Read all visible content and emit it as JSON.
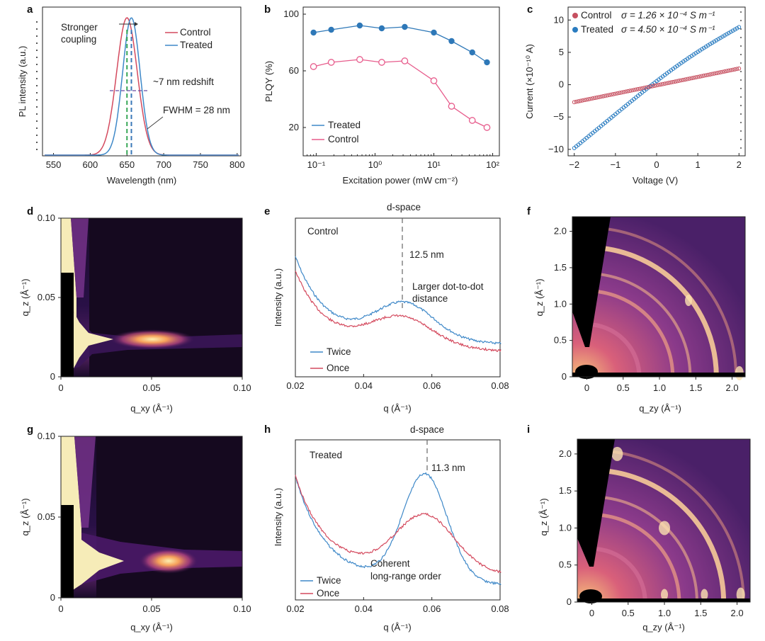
{
  "colors": {
    "control": "#d44a5e",
    "treated": "#3e88c8",
    "plqy_treated": "#2e78b8",
    "plqy_control": "#e75c8c",
    "iv_control": "#c65060",
    "iv_treated": "#2a7cc0"
  },
  "panels": {
    "a": {
      "label": "a",
      "annotations": {
        "coupling1": "Stronger",
        "coupling2": "coupling",
        "redshift": "~7 nm redshift",
        "fwhm": "FWHM = 28 nm"
      }
    },
    "b": {
      "label": "b"
    },
    "c": {
      "label": "c",
      "legend": {
        "control": "Control",
        "treated": "Treated",
        "sigma_control": "σ = 1.26 × 10⁻⁴ S m⁻¹",
        "sigma_treated": "σ = 4.50 × 10⁻⁴ S m⁻¹"
      }
    },
    "d": {
      "label": "d"
    },
    "e": {
      "label": "e",
      "top_label": "d-space",
      "annotations": {
        "sample": "Control",
        "spacing": "12.5 nm",
        "note1": "Larger dot-to-dot",
        "note2": "distance"
      }
    },
    "f": {
      "label": "f"
    },
    "g": {
      "label": "g"
    },
    "h": {
      "label": "h",
      "top_label": "d-space",
      "annotations": {
        "sample": "Treated",
        "spacing": "11.3 nm",
        "note1": "Coherent",
        "note2": "long-range order"
      }
    },
    "i": {
      "label": "i"
    }
  },
  "chart_data": [
    {
      "id": "a",
      "type": "line",
      "xlabel": "Wavelength (nm)",
      "ylabel": "PL intensity (a.u.)",
      "xticks": [
        "550",
        "600",
        "650",
        "700",
        "750",
        "800"
      ],
      "xlim": [
        535,
        805
      ],
      "series": [
        {
          "name": "Control",
          "center": 650,
          "fwhm": 33
        },
        {
          "name": "Treated",
          "center": 656,
          "fwhm": 28
        }
      ]
    },
    {
      "id": "b",
      "type": "line",
      "xlabel": "Excitation power (mW cm⁻²)",
      "ylabel": "PLQY (%)",
      "xscale": "log",
      "xticks": [
        "10⁻¹",
        "10⁰",
        "10¹",
        "10²"
      ],
      "yticks": [
        "20",
        "60",
        "100"
      ],
      "ylim": [
        0,
        105
      ],
      "x": [
        0.09,
        0.18,
        0.55,
        1.3,
        3.2,
        10,
        20,
        45,
        80
      ],
      "series": [
        {
          "name": "Treated",
          "values": [
            87,
            89,
            92,
            90,
            91,
            87,
            81,
            73,
            66
          ]
        },
        {
          "name": "Control",
          "values": [
            63,
            66,
            68,
            66,
            67,
            53,
            35,
            25,
            20
          ]
        }
      ]
    },
    {
      "id": "c",
      "type": "scatter",
      "xlabel": "Voltage (V)",
      "ylabel": "Current (×10⁻¹⁰ A)",
      "xticks": [
        "−2",
        "−1",
        "0",
        "1",
        "2"
      ],
      "yticks": [
        "10",
        "5",
        "0",
        "−5",
        "−10"
      ],
      "xlim": [
        -2.15,
        2.15
      ],
      "ylim": [
        -11,
        12
      ],
      "series": [
        {
          "name": "Control",
          "v_start": -2,
          "v_end": 2,
          "i_start": -2.7,
          "i_end": 2.5
        },
        {
          "name": "Treated",
          "v_start": -2,
          "v_end": 2,
          "i_start": -9.8,
          "i_end": 8.9
        }
      ]
    },
    {
      "id": "d",
      "type": "heatmap",
      "xlabel": "q_xy (Å⁻¹)",
      "ylabel": "q_z (Å⁻¹)",
      "xticks": [
        "0",
        "0.05",
        "0.10"
      ],
      "yticks": [
        "0",
        "0.05",
        "0.10"
      ]
    },
    {
      "id": "e",
      "type": "line",
      "xlabel": "q (Å⁻¹)",
      "ylabel": "Intensity (a.u.)",
      "xticks": [
        "0.02",
        "0.04",
        "0.06",
        "0.08"
      ],
      "xlim": [
        0.02,
        0.08
      ],
      "series": [
        {
          "name": "Twice",
          "peak_q": 0.052
        },
        {
          "name": "Once",
          "peak_q": 0.051
        }
      ]
    },
    {
      "id": "f",
      "type": "heatmap",
      "xlabel": "q_zy (Å⁻¹)",
      "ylabel": "q_z (Å⁻¹)",
      "xticks": [
        "0",
        "0.5",
        "1.0",
        "1.5",
        "2.0"
      ],
      "yticks": [
        "0",
        "0.5",
        "1.0",
        "1.5",
        "2.0"
      ]
    },
    {
      "id": "g",
      "type": "heatmap",
      "xlabel": "q_xy (Å⁻¹)",
      "ylabel": "q_z (Å⁻¹)",
      "xticks": [
        "0",
        "0.05",
        "0.10"
      ],
      "yticks": [
        "0",
        "0.05",
        "0.10"
      ]
    },
    {
      "id": "h",
      "type": "line",
      "xlabel": "q (Å⁻¹)",
      "ylabel": "Intensity (a.u.)",
      "xticks": [
        "0.02",
        "0.04",
        "0.06",
        "0.08"
      ],
      "xlim": [
        0.02,
        0.08
      ],
      "series": [
        {
          "name": "Twice",
          "peak_q": 0.058
        },
        {
          "name": "Once",
          "peak_q": 0.058
        }
      ]
    },
    {
      "id": "i",
      "type": "heatmap",
      "xlabel": "q_zy (Å⁻¹)",
      "ylabel": "q_z (Å⁻¹)",
      "xticks": [
        "0",
        "0.5",
        "1.0",
        "1.5",
        "2.0"
      ],
      "yticks": [
        "0",
        "0.5",
        "1.0",
        "1.5",
        "2.0"
      ]
    }
  ]
}
